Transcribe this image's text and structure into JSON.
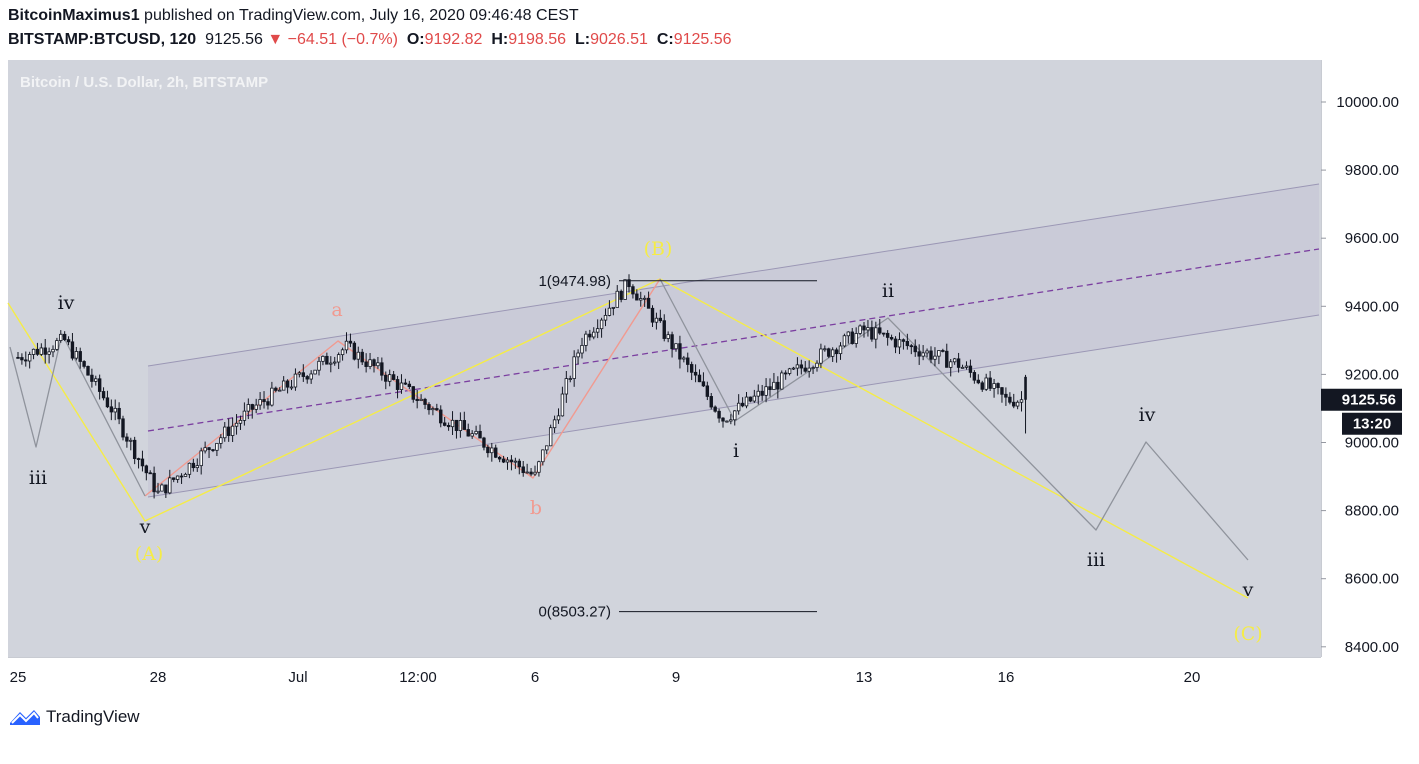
{
  "header": {
    "author": "BitcoinMaximus1",
    "published": " published on TradingView.com, July 16, 2020 09:46:48 CEST",
    "symbol": "BITSTAMP:BTCUSD, 120",
    "last": "9125.56",
    "change": "▼ −64.51 (−0.7%)",
    "o_label": "O:",
    "o_value": "9192.82",
    "h_label": "H:",
    "h_value": "9198.56",
    "l_label": "L:",
    "l_value": "9026.51",
    "c_label": "C:",
    "c_value": "9125.56"
  },
  "chart_data": {
    "type": "candlestick",
    "title": "Bitcoin / U.S. Dollar, 2h, BITSTAMP",
    "y_ticks": [
      "10000.00",
      "9800.00",
      "9600.00",
      "9400.00",
      "9200.00",
      "9000.00",
      "8800.00",
      "8600.00",
      "8400.00"
    ],
    "x_ticks": [
      "25",
      "28",
      "Jul",
      "12:00",
      "6",
      "9",
      "13",
      "16",
      "20"
    ],
    "last_price": "9125.56",
    "countdown": "13:20",
    "ohlc_last": {
      "open": 9192.82,
      "high": 9198.56,
      "low": 9026.51,
      "close": 9125.56
    },
    "fib": [
      {
        "label": "1(9474.98)",
        "value": 9474.98
      },
      {
        "label": "0(8503.27)",
        "value": 8503.27
      }
    ],
    "wave_labels": {
      "primary": [
        "(A)",
        "(B)",
        "(C)"
      ],
      "secondary": [
        "a",
        "b"
      ],
      "impulse": [
        "i",
        "ii",
        "iii",
        "iv",
        "v"
      ],
      "prior": [
        "iii",
        "iv",
        "v"
      ]
    },
    "approx_price_path": [
      {
        "date": "Jun 25",
        "price": 9250
      },
      {
        "date": "Jun 26",
        "price": 9300
      },
      {
        "date": "Jun 27",
        "price": 9100
      },
      {
        "date": "Jun 28",
        "price": 8850
      },
      {
        "date": "Jun 30",
        "price": 9100
      },
      {
        "date": "Jul 2",
        "price": 9280
      },
      {
        "date": "Jul 4",
        "price": 9080
      },
      {
        "date": "Jul 6",
        "price": 8900
      },
      {
        "date": "Jul 7",
        "price": 9300
      },
      {
        "date": "Jul 8",
        "price": 9470
      },
      {
        "date": "Jul 10",
        "price": 9070
      },
      {
        "date": "Jul 12",
        "price": 9250
      },
      {
        "date": "Jul 13",
        "price": 9330
      },
      {
        "date": "Jul 15",
        "price": 9230
      },
      {
        "date": "Jul 16",
        "price": 9125
      }
    ],
    "colors": {
      "pane": "#d1d4dc",
      "channel_fill": "#c5c3d6",
      "channel_line": "#9b97b5",
      "midline": "#7b3fa0",
      "primary_wave": "#f5ec47",
      "secondary_wave": "#f19a90",
      "projection": "#8f939c",
      "candle": "#131722"
    }
  },
  "branding": {
    "logo_text": "TradingView"
  }
}
